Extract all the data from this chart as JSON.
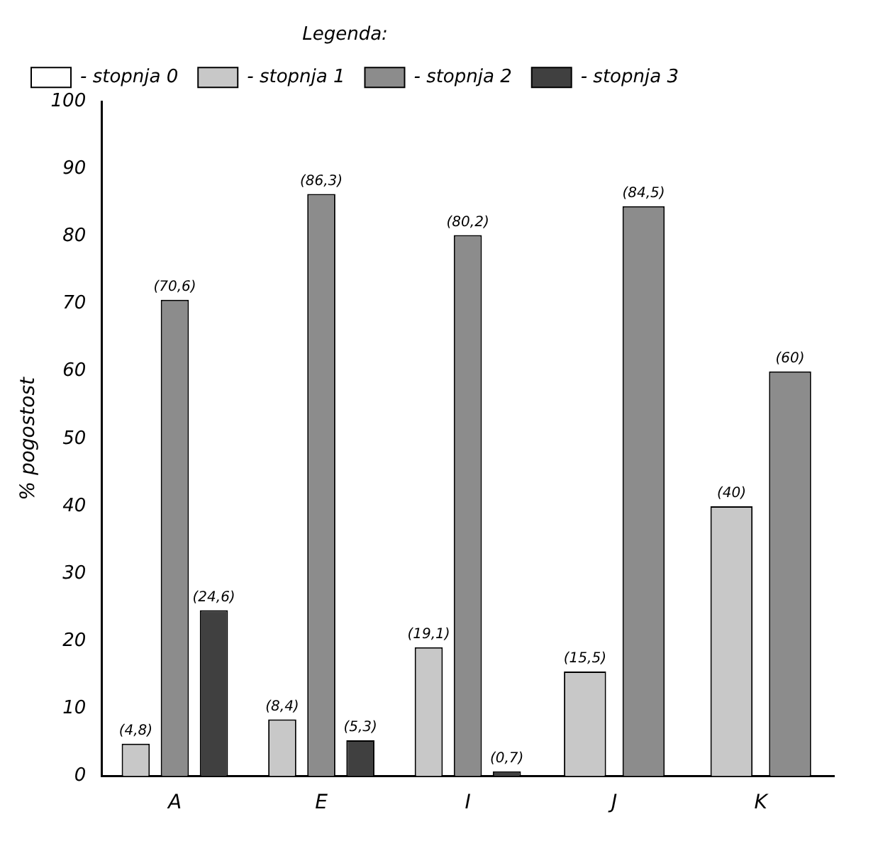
{
  "chart_data": {
    "type": "bar",
    "ylabel": "% pogostost",
    "legend_title": "Legenda:",
    "legend": "top left",
    "categories": [
      "A",
      "E",
      "I",
      "J",
      "K"
    ],
    "series": [
      {
        "name": "- stopnja 0",
        "color": "#ffffff",
        "values": [
          null,
          null,
          null,
          null,
          null
        ]
      },
      {
        "name": "- stopnja 1",
        "color": "#c8c8c8",
        "values": [
          4.8,
          8.4,
          19.1,
          15.5,
          40
        ],
        "value_labels": [
          "(4,8)",
          "(8,4)",
          "(19,1)",
          "(15,5)",
          "(40)"
        ]
      },
      {
        "name": "- stopnja 2",
        "color": "#8c8c8c",
        "values": [
          70.6,
          86.3,
          80.2,
          84.5,
          60
        ],
        "value_labels": [
          "(70,6)",
          "(86,3)",
          "(80,2)",
          "(84,5)",
          "(60)"
        ]
      },
      {
        "name": "- stopnja 3",
        "color": "#404040",
        "values": [
          24.6,
          5.3,
          0.7,
          null,
          null
        ],
        "value_labels": [
          "(24,6)",
          "(5,3)",
          "(0,7)",
          null,
          null
        ]
      }
    ],
    "ylim": [
      0,
      100
    ],
    "yticks": [
      0,
      10,
      20,
      30,
      40,
      50,
      60,
      70,
      80,
      90,
      100
    ],
    "grid": false
  }
}
